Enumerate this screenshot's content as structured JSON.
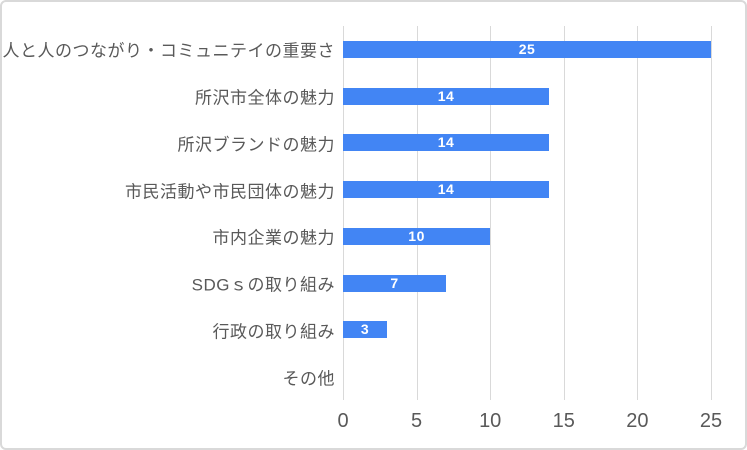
{
  "chart_data": {
    "type": "bar",
    "orientation": "horizontal",
    "title": "",
    "xlabel": "",
    "ylabel": "",
    "categories": [
      "人と人のつながり・コミュニテイの重要さ",
      "所沢市全体の魅力",
      "所沢ブランドの魅力",
      "市民活動や市民団体の魅力",
      "市内企業の魅力",
      "SDGｓの取り組み",
      "行政の取り組み",
      "その他"
    ],
    "values": [
      25,
      14,
      14,
      14,
      10,
      7,
      3,
      0
    ],
    "x_ticks": [
      0,
      5,
      10,
      15,
      20,
      25
    ],
    "xlim": [
      0,
      25
    ],
    "grid": "vertical",
    "legend": "none",
    "colors": {
      "bar": "#4285F4",
      "data_label": "#FFFFFF",
      "gridline": "#D9D9D9",
      "axis_text": "#595959",
      "category_text": "#595959",
      "frame_border": "#D9D9D9",
      "background": "#FFFFFF"
    }
  }
}
